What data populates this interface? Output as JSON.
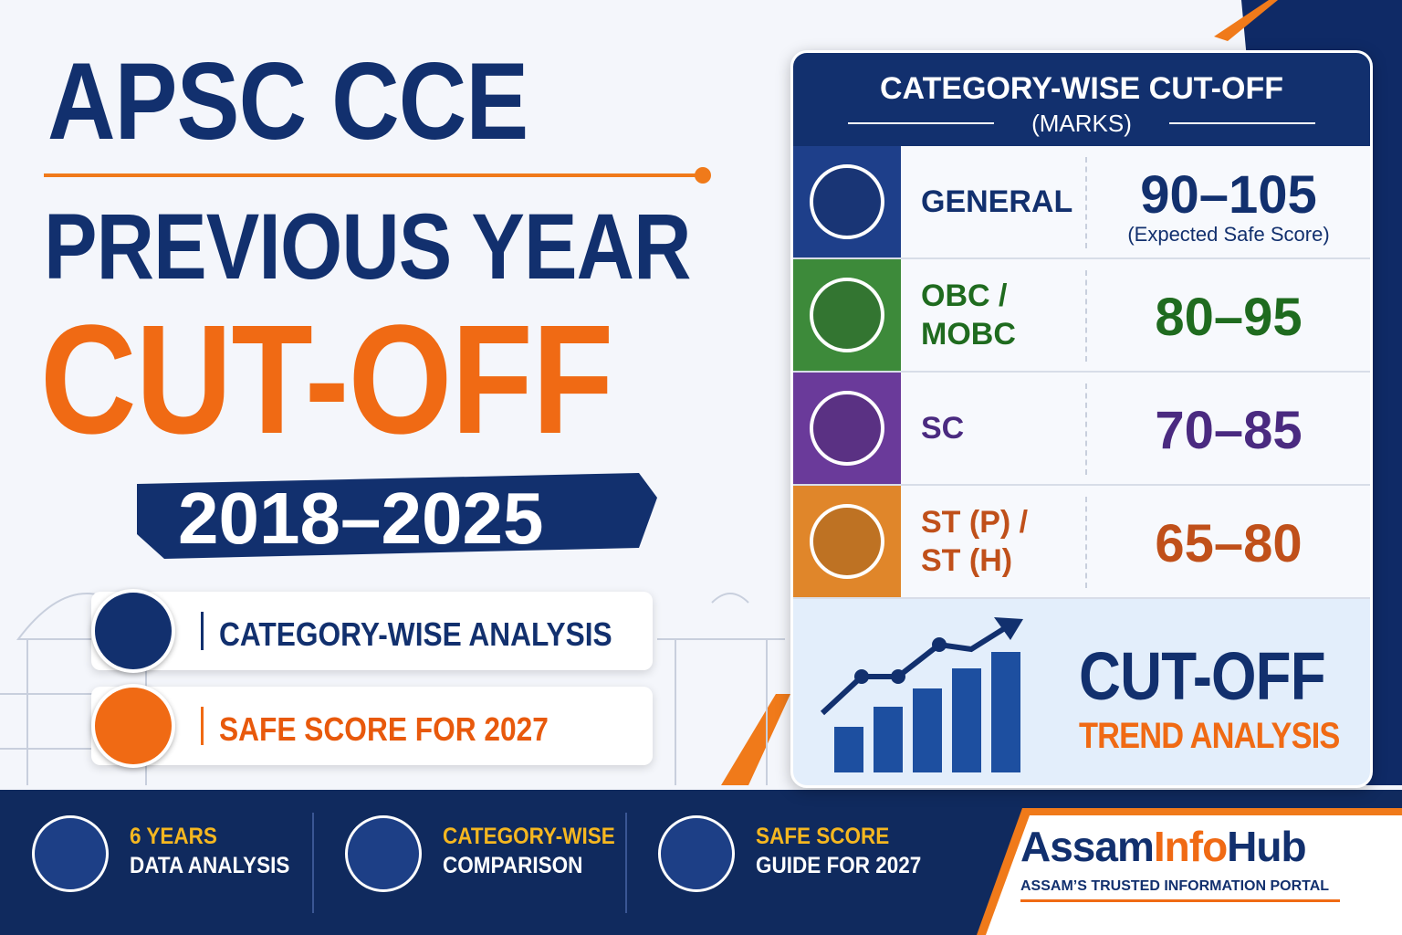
{
  "title": {
    "line1": "APSC CCE",
    "line2": "PREVIOUS YEAR",
    "line3": "CUT-OFF",
    "years": "2018–2025"
  },
  "highlights": [
    "CATEGORY-WISE ANALYSIS",
    "SAFE SCORE FOR 2027"
  ],
  "table": {
    "heading": "CATEGORY-WISE CUT-OFF",
    "subheading": "(MARKS)",
    "rows": [
      {
        "category": "GENERAL",
        "score": "90–105",
        "note": "(Expected Safe Score)"
      },
      {
        "category": "OBC / MOBC",
        "score": "80–95"
      },
      {
        "category": "SC",
        "score": "70–85"
      },
      {
        "category": "ST (P) / ST (H)",
        "score": "65–80"
      }
    ]
  },
  "trend": {
    "title": "CUT-OFF",
    "subtitle": "TREND ANALYSIS"
  },
  "footer": {
    "features": [
      {
        "line1": "6 YEARS",
        "line2": "DATA ANALYSIS"
      },
      {
        "line1": "CATEGORY-WISE",
        "line2": "COMPARISON"
      },
      {
        "line1": "SAFE SCORE",
        "line2": "GUIDE FOR 2027"
      }
    ],
    "brand": {
      "part1": "Assam",
      "part2": "Info",
      "part3": "Hub",
      "tagline": "ASSAM’S TRUSTED INFORMATION PORTAL"
    }
  }
}
